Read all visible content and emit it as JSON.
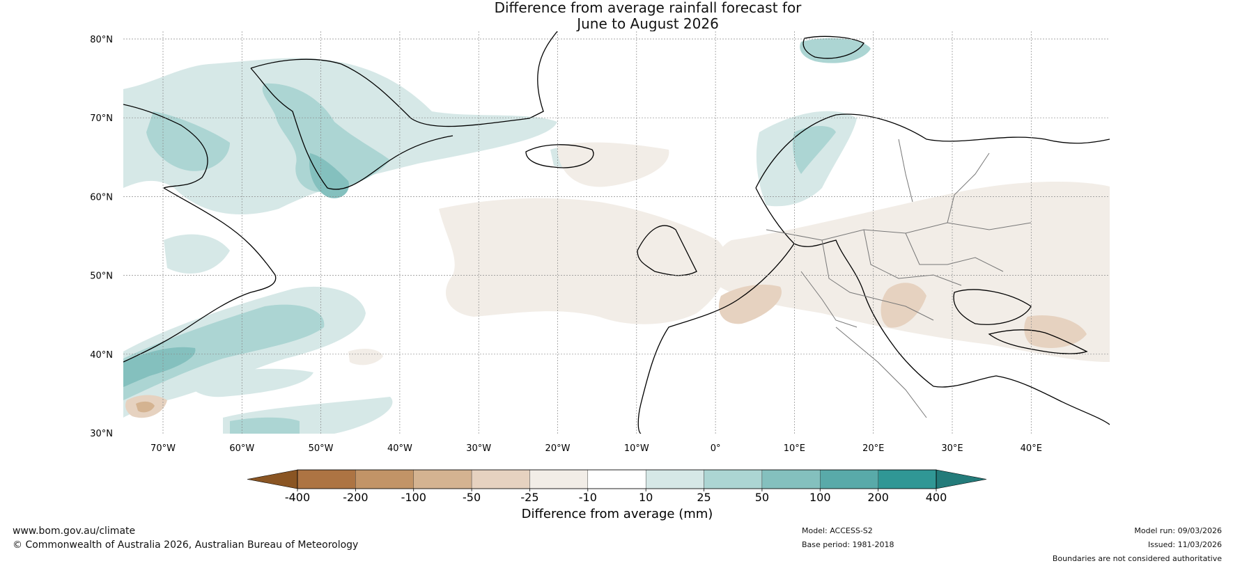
{
  "title": {
    "line1": "Difference from average rainfall forecast for",
    "line2": "June to August 2026"
  },
  "latitude_labels": [
    "80°N",
    "70°N",
    "60°N",
    "50°N",
    "40°N",
    "30°N"
  ],
  "longitude_labels": [
    "70°W",
    "60°W",
    "50°W",
    "40°W",
    "30°W",
    "20°W",
    "10°W",
    "0°",
    "10°E",
    "20°E",
    "30°E",
    "40°E"
  ],
  "colorbar": {
    "label": "Difference from average (mm)",
    "ticks": [
      "-400",
      "-200",
      "-100",
      "-50",
      "-25",
      "-10",
      "10",
      "25",
      "50",
      "100",
      "200",
      "400"
    ],
    "colors": [
      "#8a5523",
      "#ad7443",
      "#c29467",
      "#d4b391",
      "#e6d2c0",
      "#f2ede7",
      "#ffffff",
      "#d6e8e7",
      "#acd5d3",
      "#84c0be",
      "#59aaa9",
      "#309795",
      "#237b7a"
    ]
  },
  "footer": {
    "website": "www.bom.gov.au/climate",
    "copyright": "© Commonwealth of Australia 2026, Australian Bureau of Meteorology",
    "model": "Model: ACCESS-S2",
    "base_period": "Base period: 1981-2018",
    "model_run": "Model run: 09/03/2026",
    "issued": "Issued: 11/03/2026",
    "disclaimer": "Boundaries are not considered authoritative"
  }
}
